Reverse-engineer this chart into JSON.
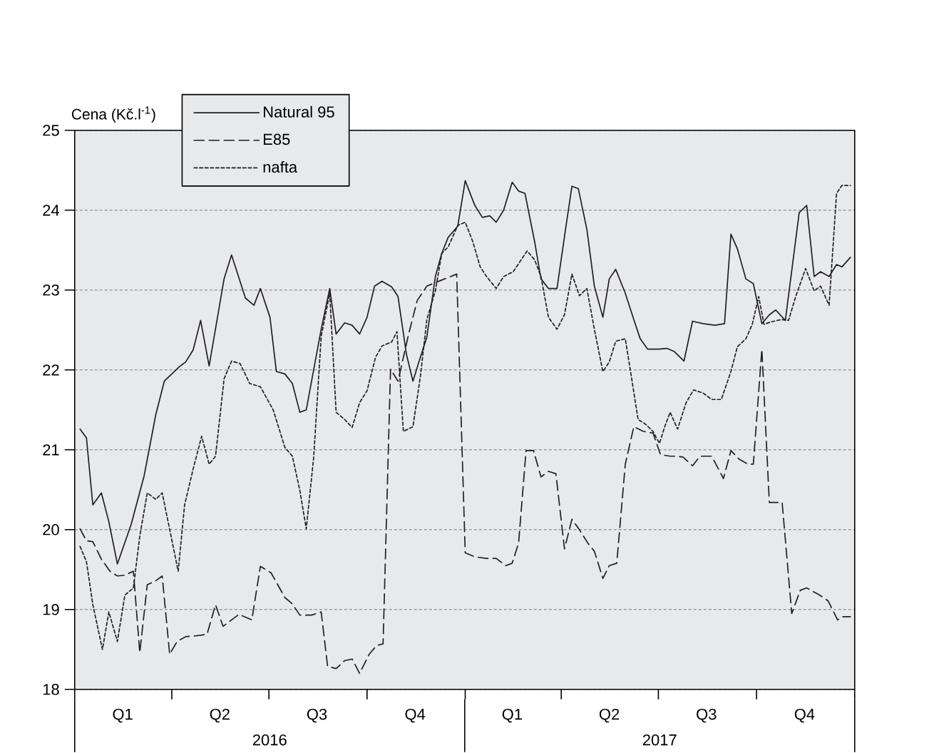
{
  "chart_data": {
    "type": "line",
    "ylabel": "Cena (Kč.l$^{-1}$)",
    "xlim": [
      "2016-01-01",
      "2018-01-01"
    ],
    "ylim": [
      18,
      25
    ],
    "yticks": [
      18,
      19,
      20,
      21,
      22,
      23,
      24,
      25
    ],
    "xticks": [
      {
        "value": "2016-01-01",
        "label": null
      },
      {
        "value": "2016-02-15",
        "label": "Q1"
      },
      {
        "value": "2016-04-01",
        "label": null
      },
      {
        "value": "2016-05-16",
        "label": "Q2"
      },
      {
        "value": "2016-07-01",
        "label": null
      },
      {
        "value": "2016-08-15",
        "label": "Q3"
      },
      {
        "value": "2016-10-01",
        "label": null
      },
      {
        "value": "2016-11-15",
        "label": "Q4"
      },
      {
        "value": "2017-01-01",
        "label": null
      },
      {
        "value": "2017-02-14",
        "label": "Q1"
      },
      {
        "value": "2017-04-01",
        "label": null
      },
      {
        "value": "2017-05-16",
        "label": "Q2"
      },
      {
        "value": "2017-07-01",
        "label": null
      },
      {
        "value": "2017-08-15",
        "label": "Q3"
      },
      {
        "value": "2017-10-01",
        "label": null
      },
      {
        "value": "2017-11-15",
        "label": "Q4"
      },
      {
        "value": "2018-01-01",
        "label": null
      }
    ],
    "annotations": [
      "2016",
      "2017"
    ],
    "grid": "y",
    "legend": "top left",
    "marker": "none",
    "series": [
      {
        "name": "Natural 95",
        "color": "#231f20",
        "line_style": "solid",
        "x": [
          "2016-01-06",
          "2016-01-12",
          "2016-01-18",
          "2016-01-26",
          "2016-02-02",
          "2016-02-10",
          "2016-02-23",
          "2016-03-06",
          "2016-03-17",
          "2016-03-25",
          "2016-04-08",
          "2016-04-14",
          "2016-04-21",
          "2016-04-28",
          "2016-05-06",
          "2016-05-20",
          "2016-05-27",
          "2016-06-09",
          "2016-06-17",
          "2016-06-23",
          "2016-07-02",
          "2016-07-08",
          "2016-07-16",
          "2016-07-23",
          "2016-07-30",
          "2016-08-05",
          "2016-08-19",
          "2016-08-27",
          "2016-09-02",
          "2016-09-10",
          "2016-09-17",
          "2016-09-24",
          "2016-10-01",
          "2016-10-08",
          "2016-10-15",
          "2016-10-24",
          "2016-10-30",
          "2016-11-07",
          "2016-11-13",
          "2016-11-20",
          "2016-11-26",
          "2016-12-04",
          "2016-12-10",
          "2016-12-16",
          "2016-12-25",
          "2017-01-01",
          "2017-01-10",
          "2017-01-17",
          "2017-01-24",
          "2017-01-30",
          "2017-02-06",
          "2017-02-14",
          "2017-02-20",
          "2017-02-26",
          "2017-03-07",
          "2017-03-13",
          "2017-03-20",
          "2017-03-28",
          "2017-04-05",
          "2017-04-11",
          "2017-04-17",
          "2017-04-25",
          "2017-05-02",
          "2017-05-10",
          "2017-05-16",
          "2017-05-22",
          "2017-05-31",
          "2017-06-08",
          "2017-06-14",
          "2017-06-21",
          "2017-07-01",
          "2017-07-09",
          "2017-07-16",
          "2017-07-25",
          "2017-08-02",
          "2017-08-12",
          "2017-08-23",
          "2017-09-01",
          "2017-09-07",
          "2017-09-13",
          "2017-09-21",
          "2017-09-28",
          "2017-10-06",
          "2017-10-13",
          "2017-10-19",
          "2017-10-28",
          "2017-11-10",
          "2017-11-17",
          "2017-11-24",
          "2017-11-30",
          "2017-12-08",
          "2017-12-15",
          "2017-12-20",
          "2017-12-28"
        ],
        "values": [
          21.26,
          21.15,
          20.31,
          20.46,
          20.1,
          19.57,
          20.07,
          20.67,
          21.44,
          21.86,
          22.04,
          22.1,
          22.25,
          22.62,
          22.05,
          23.14,
          23.44,
          22.9,
          22.81,
          23.02,
          22.66,
          21.98,
          21.95,
          21.83,
          21.47,
          21.5,
          22.51,
          23.02,
          22.45,
          22.59,
          22.56,
          22.45,
          22.66,
          23.05,
          23.11,
          23.04,
          22.92,
          22.19,
          21.86,
          22.16,
          22.41,
          23.17,
          23.46,
          23.66,
          23.8,
          24.37,
          24.06,
          23.91,
          23.93,
          23.85,
          24.0,
          24.35,
          24.24,
          24.21,
          23.61,
          23.14,
          23.02,
          23.02,
          23.76,
          24.3,
          24.27,
          23.76,
          23.05,
          22.66,
          23.14,
          23.26,
          22.96,
          22.63,
          22.39,
          22.26,
          22.26,
          22.27,
          22.23,
          22.11,
          22.61,
          22.58,
          22.56,
          22.58,
          23.7,
          23.52,
          23.14,
          23.08,
          22.58,
          22.69,
          22.75,
          22.62,
          23.97,
          24.06,
          23.17,
          23.23,
          23.17,
          23.32,
          23.29,
          23.41
        ]
      },
      {
        "name": "E85",
        "color": "#231f20",
        "line_style": "dashed",
        "x": [
          "2016-01-06",
          "2016-01-12",
          "2016-01-18",
          "2016-01-26",
          "2016-02-03",
          "2016-02-10",
          "2016-02-17",
          "2016-02-25",
          "2016-03-02",
          "2016-03-09",
          "2016-03-17",
          "2016-03-23",
          "2016-03-30",
          "2016-04-06",
          "2016-04-14",
          "2016-04-23",
          "2016-05-04",
          "2016-05-12",
          "2016-05-19",
          "2016-05-27",
          "2016-06-03",
          "2016-06-15",
          "2016-06-23",
          "2016-07-03",
          "2016-07-16",
          "2016-07-23",
          "2016-07-30",
          "2016-08-10",
          "2016-08-19",
          "2016-08-25",
          "2016-09-02",
          "2016-09-10",
          "2016-09-17",
          "2016-09-24",
          "2016-10-03",
          "2016-10-10",
          "2016-10-16",
          "2016-10-23",
          "2016-10-30",
          "2016-11-09",
          "2016-11-17",
          "2016-11-26",
          "2016-12-09",
          "2016-12-24",
          "2017-01-01",
          "2017-01-10",
          "2017-01-21",
          "2017-01-30",
          "2017-02-08",
          "2017-02-14",
          "2017-02-20",
          "2017-02-27",
          "2017-03-06",
          "2017-03-13",
          "2017-03-20",
          "2017-03-27",
          "2017-04-04",
          "2017-04-11",
          "2017-04-18",
          "2017-04-26",
          "2017-05-02",
          "2017-05-10",
          "2017-05-16",
          "2017-05-23",
          "2017-05-31",
          "2017-06-08",
          "2017-06-17",
          "2017-06-26",
          "2017-07-03",
          "2017-07-12",
          "2017-07-16",
          "2017-07-24",
          "2017-08-02",
          "2017-08-09",
          "2017-08-20",
          "2017-08-31",
          "2017-09-07",
          "2017-09-15",
          "2017-09-23",
          "2017-09-28",
          "2017-10-06",
          "2017-10-13",
          "2017-10-25",
          "2017-11-03",
          "2017-11-11",
          "2017-11-17",
          "2017-11-28",
          "2017-12-07",
          "2017-12-16",
          "2017-12-20",
          "2017-12-28"
        ],
        "values": [
          20.01,
          19.86,
          19.85,
          19.63,
          19.48,
          19.42,
          19.43,
          19.48,
          18.46,
          19.31,
          19.36,
          19.42,
          18.44,
          18.6,
          18.66,
          18.67,
          18.69,
          19.06,
          18.79,
          18.87,
          18.94,
          18.87,
          19.54,
          19.46,
          19.15,
          19.07,
          18.93,
          18.93,
          18.97,
          18.29,
          18.26,
          18.36,
          18.38,
          18.2,
          18.44,
          18.55,
          18.57,
          22.01,
          21.86,
          22.45,
          22.87,
          23.05,
          23.12,
          23.2,
          19.71,
          19.66,
          19.64,
          19.64,
          19.55,
          19.58,
          19.83,
          20.99,
          20.99,
          20.66,
          20.73,
          20.7,
          19.76,
          20.13,
          20.0,
          19.83,
          19.73,
          19.39,
          19.55,
          19.58,
          20.82,
          21.29,
          21.23,
          21.21,
          20.94,
          20.92,
          20.92,
          20.91,
          20.8,
          20.92,
          20.92,
          20.64,
          20.99,
          20.88,
          20.82,
          20.82,
          22.26,
          20.34,
          20.34,
          18.95,
          19.24,
          19.27,
          19.19,
          19.11,
          18.87,
          18.91,
          18.91
        ]
      },
      {
        "name": "nafta",
        "color": "#231f20",
        "line_style": "dotted",
        "x": [
          "2016-01-06",
          "2016-01-12",
          "2016-01-18",
          "2016-01-27",
          "2016-02-02",
          "2016-02-10",
          "2016-02-17",
          "2016-02-25",
          "2016-03-02",
          "2016-03-09",
          "2016-03-17",
          "2016-03-23",
          "2016-04-07",
          "2016-04-13",
          "2016-04-21",
          "2016-04-29",
          "2016-05-06",
          "2016-05-12",
          "2016-05-20",
          "2016-05-27",
          "2016-06-04",
          "2016-06-13",
          "2016-06-23",
          "2016-07-05",
          "2016-07-16",
          "2016-07-23",
          "2016-07-30",
          "2016-08-05",
          "2016-08-12",
          "2016-08-19",
          "2016-08-27",
          "2016-09-02",
          "2016-09-10",
          "2016-09-17",
          "2016-09-24",
          "2016-10-01",
          "2016-10-09",
          "2016-10-15",
          "2016-10-24",
          "2016-10-29",
          "2016-11-04",
          "2016-11-13",
          "2016-11-20",
          "2016-11-26",
          "2016-12-04",
          "2016-12-10",
          "2016-12-16",
          "2016-12-25",
          "2017-01-01",
          "2017-01-08",
          "2017-01-15",
          "2017-01-21",
          "2017-01-30",
          "2017-02-06",
          "2017-02-15",
          "2017-02-21",
          "2017-02-28",
          "2017-03-07",
          "2017-03-13",
          "2017-03-20",
          "2017-03-28",
          "2017-04-04",
          "2017-04-11",
          "2017-04-18",
          "2017-04-25",
          "2017-05-02",
          "2017-05-10",
          "2017-05-16",
          "2017-05-22",
          "2017-05-31",
          "2017-06-06",
          "2017-06-12",
          "2017-06-19",
          "2017-06-26",
          "2017-07-02",
          "2017-07-07",
          "2017-07-12",
          "2017-07-19",
          "2017-07-27",
          "2017-08-03",
          "2017-08-12",
          "2017-08-20",
          "2017-08-29",
          "2017-09-07",
          "2017-09-13",
          "2017-09-21",
          "2017-09-27",
          "2017-10-03",
          "2017-10-08",
          "2017-10-14",
          "2017-10-24",
          "2017-10-31",
          "2017-11-07",
          "2017-11-16",
          "2017-11-24",
          "2017-11-30",
          "2017-12-08",
          "2017-12-15",
          "2017-12-20",
          "2017-12-28"
        ],
        "values": [
          19.79,
          19.6,
          19.06,
          18.5,
          18.97,
          18.6,
          19.18,
          19.27,
          19.92,
          20.46,
          20.38,
          20.46,
          19.48,
          20.31,
          20.76,
          21.17,
          20.82,
          20.92,
          21.89,
          22.11,
          22.08,
          21.83,
          21.79,
          21.5,
          21.03,
          20.92,
          20.49,
          20.01,
          20.91,
          22.42,
          22.96,
          21.47,
          21.38,
          21.28,
          21.59,
          21.74,
          22.16,
          22.3,
          22.35,
          22.48,
          21.23,
          21.29,
          21.92,
          22.63,
          22.99,
          23.46,
          23.54,
          23.81,
          23.85,
          23.61,
          23.29,
          23.17,
          23.02,
          23.17,
          23.23,
          23.35,
          23.49,
          23.38,
          23.17,
          22.66,
          22.51,
          22.69,
          23.2,
          22.93,
          23.02,
          22.51,
          21.98,
          22.1,
          22.36,
          22.39,
          21.89,
          21.38,
          21.32,
          21.23,
          21.08,
          21.29,
          21.47,
          21.26,
          21.59,
          21.75,
          21.71,
          21.63,
          21.63,
          21.98,
          22.29,
          22.39,
          22.57,
          22.92,
          22.57,
          22.6,
          22.63,
          22.62,
          22.93,
          23.27,
          22.99,
          23.05,
          22.81,
          24.21,
          24.31,
          24.31
        ]
      }
    ]
  }
}
